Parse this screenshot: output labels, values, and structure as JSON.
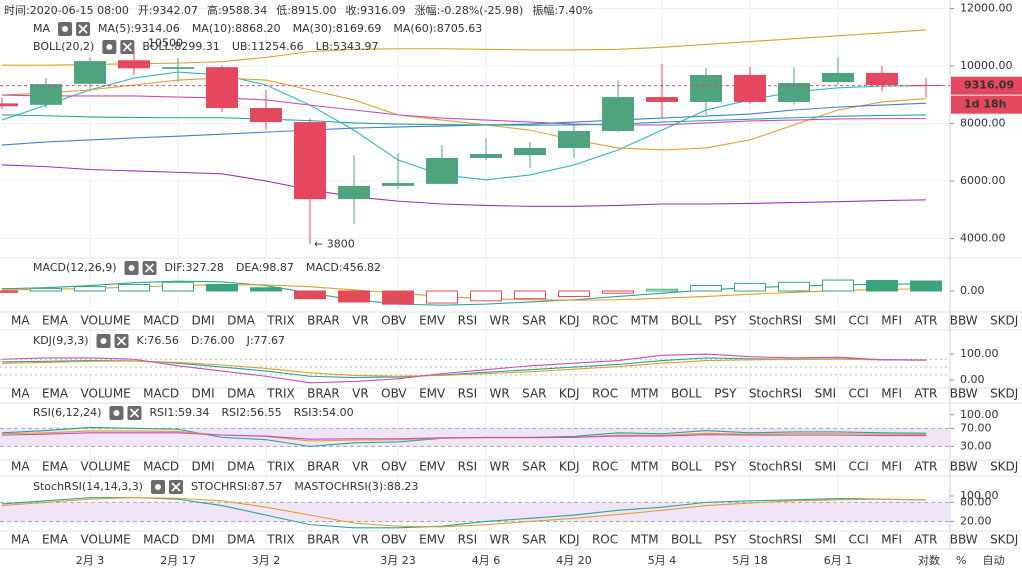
{
  "header": {
    "items": [
      "时间:2020-06-15 08:00",
      "开:9342.07",
      "高:9588.34",
      "低:8915.00",
      "收:9316.09",
      "涨幅:-0.28%(-25.98)",
      "振幅:7.40%"
    ]
  },
  "indicator_tabs": [
    "MA",
    "EMA",
    "VOLUME",
    "MACD",
    "DMI",
    "DMA",
    "TRIX",
    "BRAR",
    "VR",
    "OBV",
    "EMV",
    "RSI",
    "WR",
    "SAR",
    "KDJ",
    "ROC",
    "MTM",
    "BOLL",
    "PSY",
    "StochRSI",
    "SMI",
    "CCI",
    "MFI",
    "ATR",
    "BBW",
    "SKDJ"
  ],
  "scale_options": [
    "对数",
    "%",
    "自动"
  ],
  "chart_data": [
    {
      "type": "candlestick",
      "categories": [
        null,
        null,
        "2月 3",
        null,
        "2月 17",
        null,
        "3月 2",
        null,
        null,
        "3月 23",
        null,
        "4月 6",
        null,
        "4月 20",
        null,
        "5月 4",
        null,
        "5月 18",
        null,
        "6月 1",
        null,
        null
      ],
      "open": [
        8700,
        8650,
        9380,
        10200,
        9900,
        9960,
        8540,
        8050,
        5370,
        5830,
        5900,
        6800,
        6900,
        7150,
        7740,
        8920,
        8750,
        9690,
        8750,
        9440,
        9760,
        9342.07
      ],
      "high": [
        8900,
        9580,
        10300,
        10500,
        10280,
        10010,
        9170,
        8180,
        6900,
        6970,
        7250,
        7500,
        7360,
        7980,
        9500,
        10070,
        9930,
        9970,
        9950,
        10300,
        10000,
        9588.34
      ],
      "low": [
        8500,
        8540,
        9130,
        9690,
        9420,
        8400,
        7790,
        3800,
        4500,
        5720,
        5890,
        6730,
        6450,
        6800,
        7700,
        8200,
        8300,
        8680,
        8650,
        9340,
        9130,
        8915
      ],
      "close": [
        8600,
        9370,
        10170,
        9920,
        9960,
        8540,
        8050,
        5370,
        5830,
        5930,
        6800,
        6940,
        7150,
        7740,
        8920,
        8750,
        9690,
        8750,
        9410,
        9760,
        9340,
        9316.09
      ],
      "up_color": "#4fa47f",
      "down_color": "#e5475e",
      "ylim": [
        3322,
        12296
      ],
      "yticks": [
        {
          "value": 12000,
          "label": "12000.00"
        },
        {
          "value": 10000,
          "label": "10000.00"
        },
        {
          "value": 8000,
          "label": "8000.00"
        },
        {
          "value": 6000,
          "label": "6000.00"
        },
        {
          "value": 4000,
          "label": "4000.00"
        }
      ],
      "grid": true,
      "legend_titles": [
        "MA",
        "BOLL(20,2)"
      ],
      "series": [
        {
          "name": "MA(5):9314.06",
          "color": "#2fb8c2",
          "group": 0,
          "values": [
            8120,
            8640,
            9170,
            9580,
            9790,
            9690,
            9340,
            8640,
            7770,
            6730,
            6210,
            6040,
            6210,
            6560,
            7080,
            7770,
            8470,
            8820,
            9100,
            9240,
            9300,
            9314.06
          ]
        },
        {
          "name": "MA(10):8868.20",
          "color": "#e0a030",
          "group": 0,
          "values": [
            8990,
            9060,
            9170,
            9340,
            9510,
            9580,
            9510,
            9170,
            8820,
            8300,
            8120,
            7950,
            7770,
            7430,
            7150,
            7080,
            7150,
            7430,
            7950,
            8470,
            8750,
            8868.2
          ]
        },
        {
          "name": "MA(30):8169.69",
          "color": "#c64fc0",
          "group": 0,
          "values": [
            8990,
            8960,
            8960,
            8960,
            8920,
            8890,
            8820,
            8640,
            8470,
            8300,
            8190,
            8120,
            8050,
            7980,
            7950,
            7950,
            8020,
            8090,
            8120,
            8160,
            8170,
            8169.69
          ]
        },
        {
          "name": "MA(60):8705.63",
          "color": "#3f7fd8",
          "group": 0,
          "values": [
            7250,
            7360,
            7430,
            7500,
            7560,
            7630,
            7700,
            7770,
            7840,
            7880,
            7910,
            7950,
            7980,
            8050,
            8120,
            8190,
            8260,
            8330,
            8470,
            8570,
            8640,
            8705.63
          ]
        },
        {
          "name": "BOLL:8299.31",
          "color": "#2aa59a",
          "group": 1,
          "values": [
            8300,
            8270,
            8230,
            8210,
            8200,
            8200,
            8150,
            8100,
            8020,
            7980,
            7960,
            7950,
            7940,
            7950,
            7980,
            8050,
            8100,
            8150,
            8200,
            8250,
            8280,
            8299.31
          ]
        },
        {
          "name": "UB:11254.66",
          "color": "#d4a42c",
          "group": 1,
          "values": [
            10030,
            10030,
            10050,
            10080,
            10100,
            10150,
            10300,
            10500,
            10580,
            10600,
            10600,
            10580,
            10560,
            10560,
            10580,
            10650,
            10750,
            10850,
            10950,
            11050,
            11150,
            11254.66
          ]
        },
        {
          "name": "LB:5343.97",
          "color": "#9b33b8",
          "group": 1,
          "values": [
            6560,
            6500,
            6400,
            6350,
            6300,
            6250,
            6000,
            5700,
            5450,
            5300,
            5200,
            5150,
            5120,
            5120,
            5150,
            5200,
            5200,
            5220,
            5250,
            5280,
            5320,
            5343.97
          ]
        }
      ],
      "annotations": [
        {
          "text": "10500",
          "index": 3
        },
        {
          "text": "← 3800",
          "index": 7
        }
      ],
      "last_price": {
        "value": 9316.09,
        "label": "9316.09",
        "color": "#e5475e"
      },
      "countdown": "1d 18h"
    },
    {
      "type": "bar",
      "active_tab": 3,
      "ylim": [
        -960,
        1510
      ],
      "yticks": [
        {
          "value": 0,
          "label": "0.00"
        }
      ],
      "legend_titles": [
        "MACD(12,26,9)"
      ],
      "series": [
        {
          "name": "DIF:327.28",
          "color": "#2aa59a",
          "group": 0,
          "values": [
            100,
            150,
            250,
            380,
            450,
            420,
            250,
            -100,
            -400,
            -600,
            -650,
            -600,
            -500,
            -400,
            -250,
            -100,
            50,
            150,
            220,
            280,
            310,
            327.28
          ]
        },
        {
          "name": "DEA:98.87",
          "color": "#e0a030",
          "group": 0,
          "values": [
            50,
            80,
            120,
            180,
            250,
            290,
            280,
            200,
            50,
            -100,
            -250,
            -350,
            -400,
            -420,
            -400,
            -330,
            -250,
            -150,
            -60,
            20,
            70,
            98.87
          ]
        },
        {
          "name": "MACD:456.82",
          "kind": "bar",
          "color": "#3aa57a",
          "down_color": "#e34a5a",
          "group": 0,
          "values": [
            -60,
            120,
            200,
            300,
            400,
            300,
            150,
            -350,
            -500,
            -600,
            -550,
            -450,
            -350,
            -250,
            -100,
            80,
            250,
            350,
            400,
            500,
            480,
            456.82
          ]
        }
      ]
    },
    {
      "type": "line",
      "active_tab": 14,
      "ylim": [
        -30,
        192
      ],
      "yticks": [
        {
          "value": 100,
          "label": "100.00"
        },
        {
          "value": 0,
          "label": "0.00"
        }
      ],
      "ref_lines": [
        80,
        50,
        20
      ],
      "legend_titles": [
        "KDJ(9,3,3)"
      ],
      "series": [
        {
          "name": "K:76.56",
          "color": "#2aa59a",
          "group": 0,
          "values": [
            70,
            72,
            75,
            74,
            65,
            50,
            35,
            15,
            10,
            12,
            20,
            30,
            40,
            50,
            60,
            75,
            85,
            82,
            80,
            82,
            78,
            76.56
          ]
        },
        {
          "name": "D:76.00",
          "color": "#e0a030",
          "group": 0,
          "values": [
            65,
            68,
            72,
            73,
            68,
            58,
            45,
            28,
            18,
            15,
            18,
            25,
            32,
            42,
            52,
            65,
            75,
            78,
            79,
            80,
            78,
            76
          ]
        },
        {
          "name": "J:77.67",
          "color": "#c64fc0",
          "group": 0,
          "values": [
            80,
            85,
            85,
            80,
            55,
            35,
            15,
            -10,
            -5,
            5,
            25,
            40,
            55,
            65,
            75,
            95,
            100,
            90,
            85,
            88,
            78,
            77.67
          ]
        }
      ]
    },
    {
      "type": "line",
      "active_tab": 11,
      "ylim": [
        0,
        126
      ],
      "yticks": [
        {
          "value": 100,
          "label": "100.00"
        },
        {
          "value": 70,
          "label": "70.00"
        },
        {
          "value": 30,
          "label": "30.00"
        }
      ],
      "band": [
        30,
        70
      ],
      "band_color": "#f1e4f7",
      "legend_titles": [
        "RSI(6,12,24)"
      ],
      "series": [
        {
          "name": "RSI1:59.34",
          "color": "#2aa59a",
          "group": 0,
          "values": [
            60,
            65,
            72,
            70,
            68,
            50,
            45,
            30,
            38,
            40,
            48,
            50,
            50,
            52,
            60,
            58,
            65,
            60,
            62,
            62,
            60,
            59.34
          ]
        },
        {
          "name": "RSI2:56.55",
          "color": "#e0a030",
          "group": 0,
          "values": [
            58,
            60,
            64,
            64,
            63,
            55,
            52,
            42,
            44,
            45,
            48,
            49,
            49,
            50,
            55,
            55,
            59,
            57,
            58,
            58,
            57,
            56.55
          ]
        },
        {
          "name": "RSI3:54.00",
          "color": "#c64fc0",
          "group": 0,
          "values": [
            55,
            57,
            60,
            60,
            60,
            55,
            53,
            46,
            47,
            47,
            49,
            50,
            50,
            50,
            53,
            53,
            56,
            55,
            55,
            55,
            54,
            54
          ]
        }
      ]
    },
    {
      "type": "line",
      "active_tab": 19,
      "ylim": [
        -10,
        163
      ],
      "yticks": [
        {
          "value": 100,
          "label": "100.00"
        },
        {
          "value": 80,
          "label": "80.00"
        },
        {
          "value": 20,
          "label": "20.00"
        }
      ],
      "band": [
        20,
        80
      ],
      "band_color": "#f1e4f7",
      "legend_titles": [
        "StochRSI(14,14,3,3)"
      ],
      "series": [
        {
          "name": "STOCHRSI:87.57",
          "color": "#2aa59a",
          "group": 0,
          "values": [
            75,
            85,
            95,
            95,
            90,
            70,
            40,
            10,
            0,
            0,
            5,
            20,
            30,
            40,
            55,
            65,
            80,
            85,
            88,
            92,
            90,
            87.57
          ]
        },
        {
          "name": "MASTOCHRSI(3):88.23",
          "color": "#e0a030",
          "group": 0,
          "values": [
            70,
            80,
            90,
            95,
            93,
            85,
            65,
            40,
            15,
            5,
            3,
            10,
            20,
            30,
            42,
            55,
            70,
            78,
            85,
            88,
            90,
            88.23
          ]
        }
      ]
    }
  ]
}
